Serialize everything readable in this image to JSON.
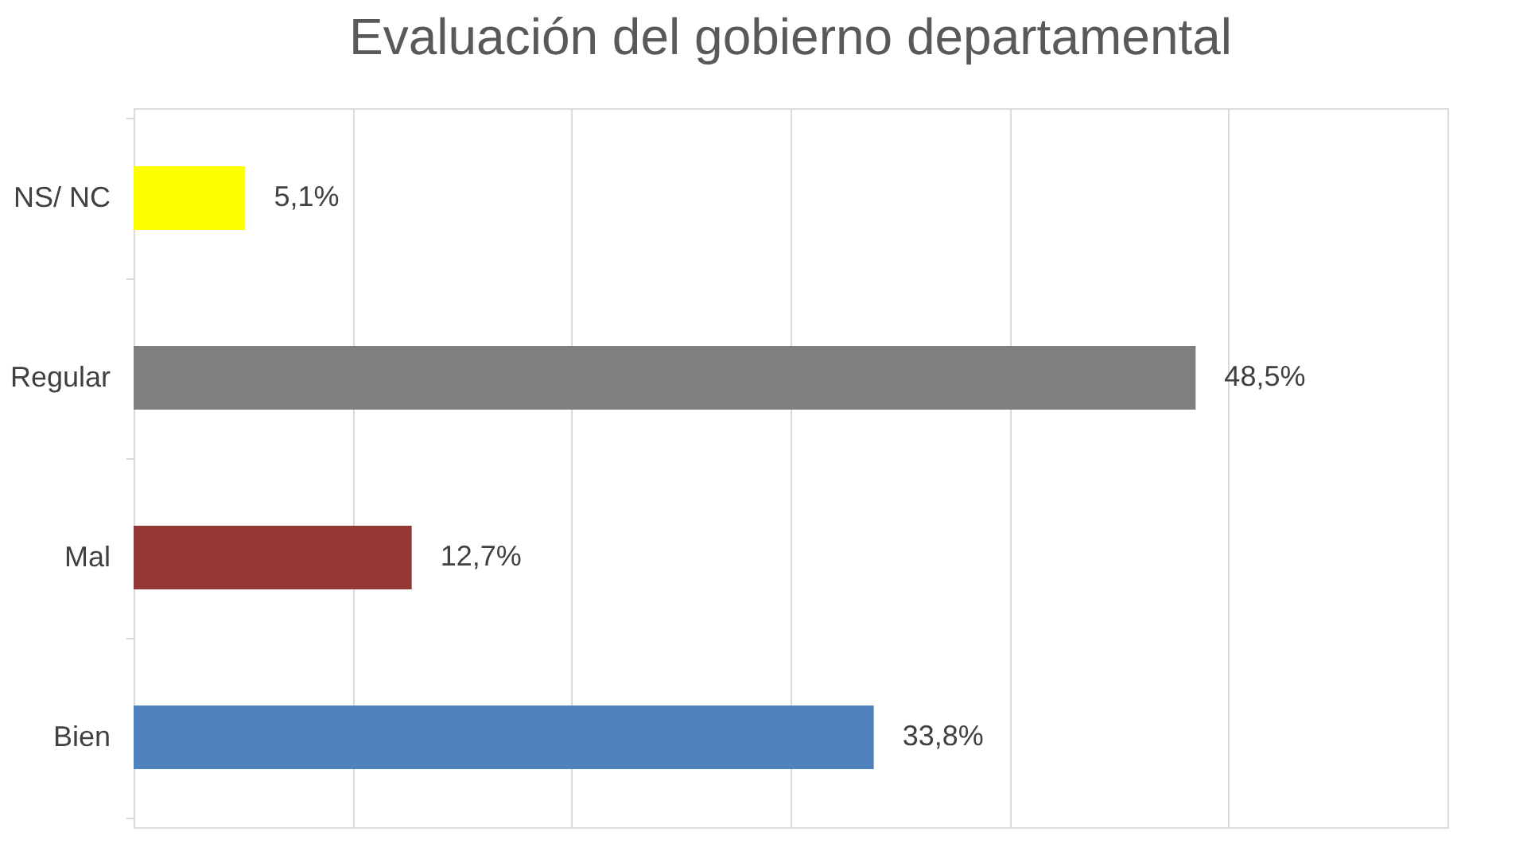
{
  "chart_data": {
    "type": "bar",
    "title": "Evaluación del gobierno departamental",
    "orientation": "horizontal",
    "categories": [
      "NS/ NC",
      "Regular",
      "Mal",
      "Bien"
    ],
    "values": [
      5.1,
      48.5,
      12.7,
      33.8
    ],
    "colors": [
      "#ffff00",
      "#7f7f7f",
      "#953735",
      "#4f81bd"
    ],
    "value_labels": [
      "5,1%",
      "48,5%",
      "12,7%",
      "33,8%"
    ],
    "xlim": [
      0,
      60
    ],
    "xticks": [
      {
        "value": 0,
        "label": null
      },
      {
        "value": 10,
        "label": null
      },
      {
        "value": 20,
        "label": null
      },
      {
        "value": 30,
        "label": null
      },
      {
        "value": 40,
        "label": null
      },
      {
        "value": 50,
        "label": null
      },
      {
        "value": 60,
        "label": null
      }
    ],
    "grid": "x",
    "tick_labels": "y"
  }
}
